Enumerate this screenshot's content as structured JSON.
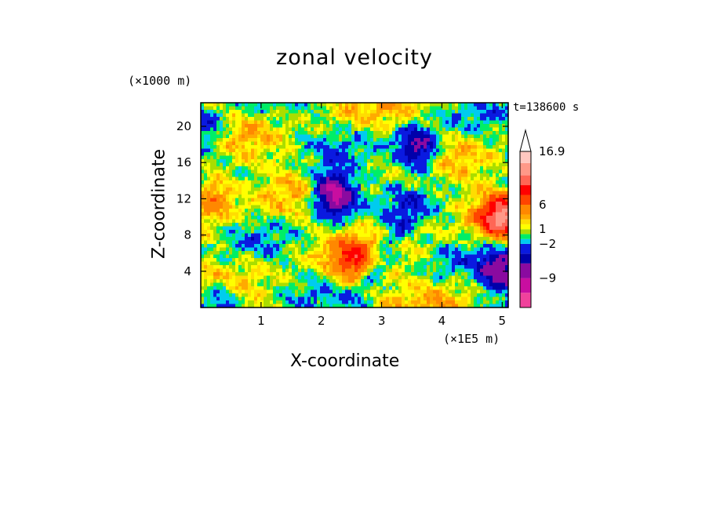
{
  "chart_data": {
    "type": "heatmap",
    "title": "zonal velocity",
    "xlabel": "X-coordinate",
    "ylabel": "Z-coordinate",
    "x_unit": "(×1E5 m)",
    "y_unit": "(×1000 m)",
    "time_label": "t=138600 s",
    "xlim": [
      0,
      5.1
    ],
    "ylim": [
      0,
      22.6
    ],
    "xticks": [
      "1",
      "2",
      "3",
      "4",
      "5"
    ],
    "xtick_values": [
      1,
      2,
      3,
      4,
      5
    ],
    "yticks": [
      "4",
      "8",
      "12",
      "16",
      "20"
    ],
    "ytick_values": [
      4,
      8,
      12,
      16,
      20
    ],
    "colorbar": {
      "labels": [
        "16.9",
        "6",
        "1",
        "−2",
        "−9"
      ],
      "label_values": [
        16.9,
        6,
        1,
        -2,
        -9
      ],
      "extend": "max",
      "colors": [
        "#f0429c",
        "#c80ea0",
        "#8a0aa0",
        "#0000aa",
        "#0a1ae0",
        "#00ccee",
        "#00ee66",
        "#aadd00",
        "#ffff00",
        "#ffdd00",
        "#ffaa00",
        "#ff8800",
        "#ff4400",
        "#ff0000",
        "#ff6655",
        "#ff9988",
        "#ffc8c0"
      ]
    },
    "notable_features": [
      {
        "name": "strong westward jet",
        "x": 2.2,
        "y": 12.5,
        "value": -12
      },
      {
        "name": "strong westward jet",
        "x": 3.6,
        "y": 17.5,
        "value": -9
      },
      {
        "name": "strong eastward jet",
        "x": 0.2,
        "y": 12.5,
        "value": 6
      },
      {
        "name": "strong eastward jet",
        "x": 2.5,
        "y": 5,
        "value": 6
      },
      {
        "name": "strong eastward jet",
        "x": 5.0,
        "y": 10,
        "value": 10
      },
      {
        "name": "westward jet",
        "x": 0.1,
        "y": 19.5,
        "value": -5
      },
      {
        "name": "westward jet",
        "x": 0.3,
        "y": 0.8,
        "value": -5
      },
      {
        "name": "westward jet",
        "x": 5.0,
        "y": 4,
        "value": -8
      }
    ]
  }
}
